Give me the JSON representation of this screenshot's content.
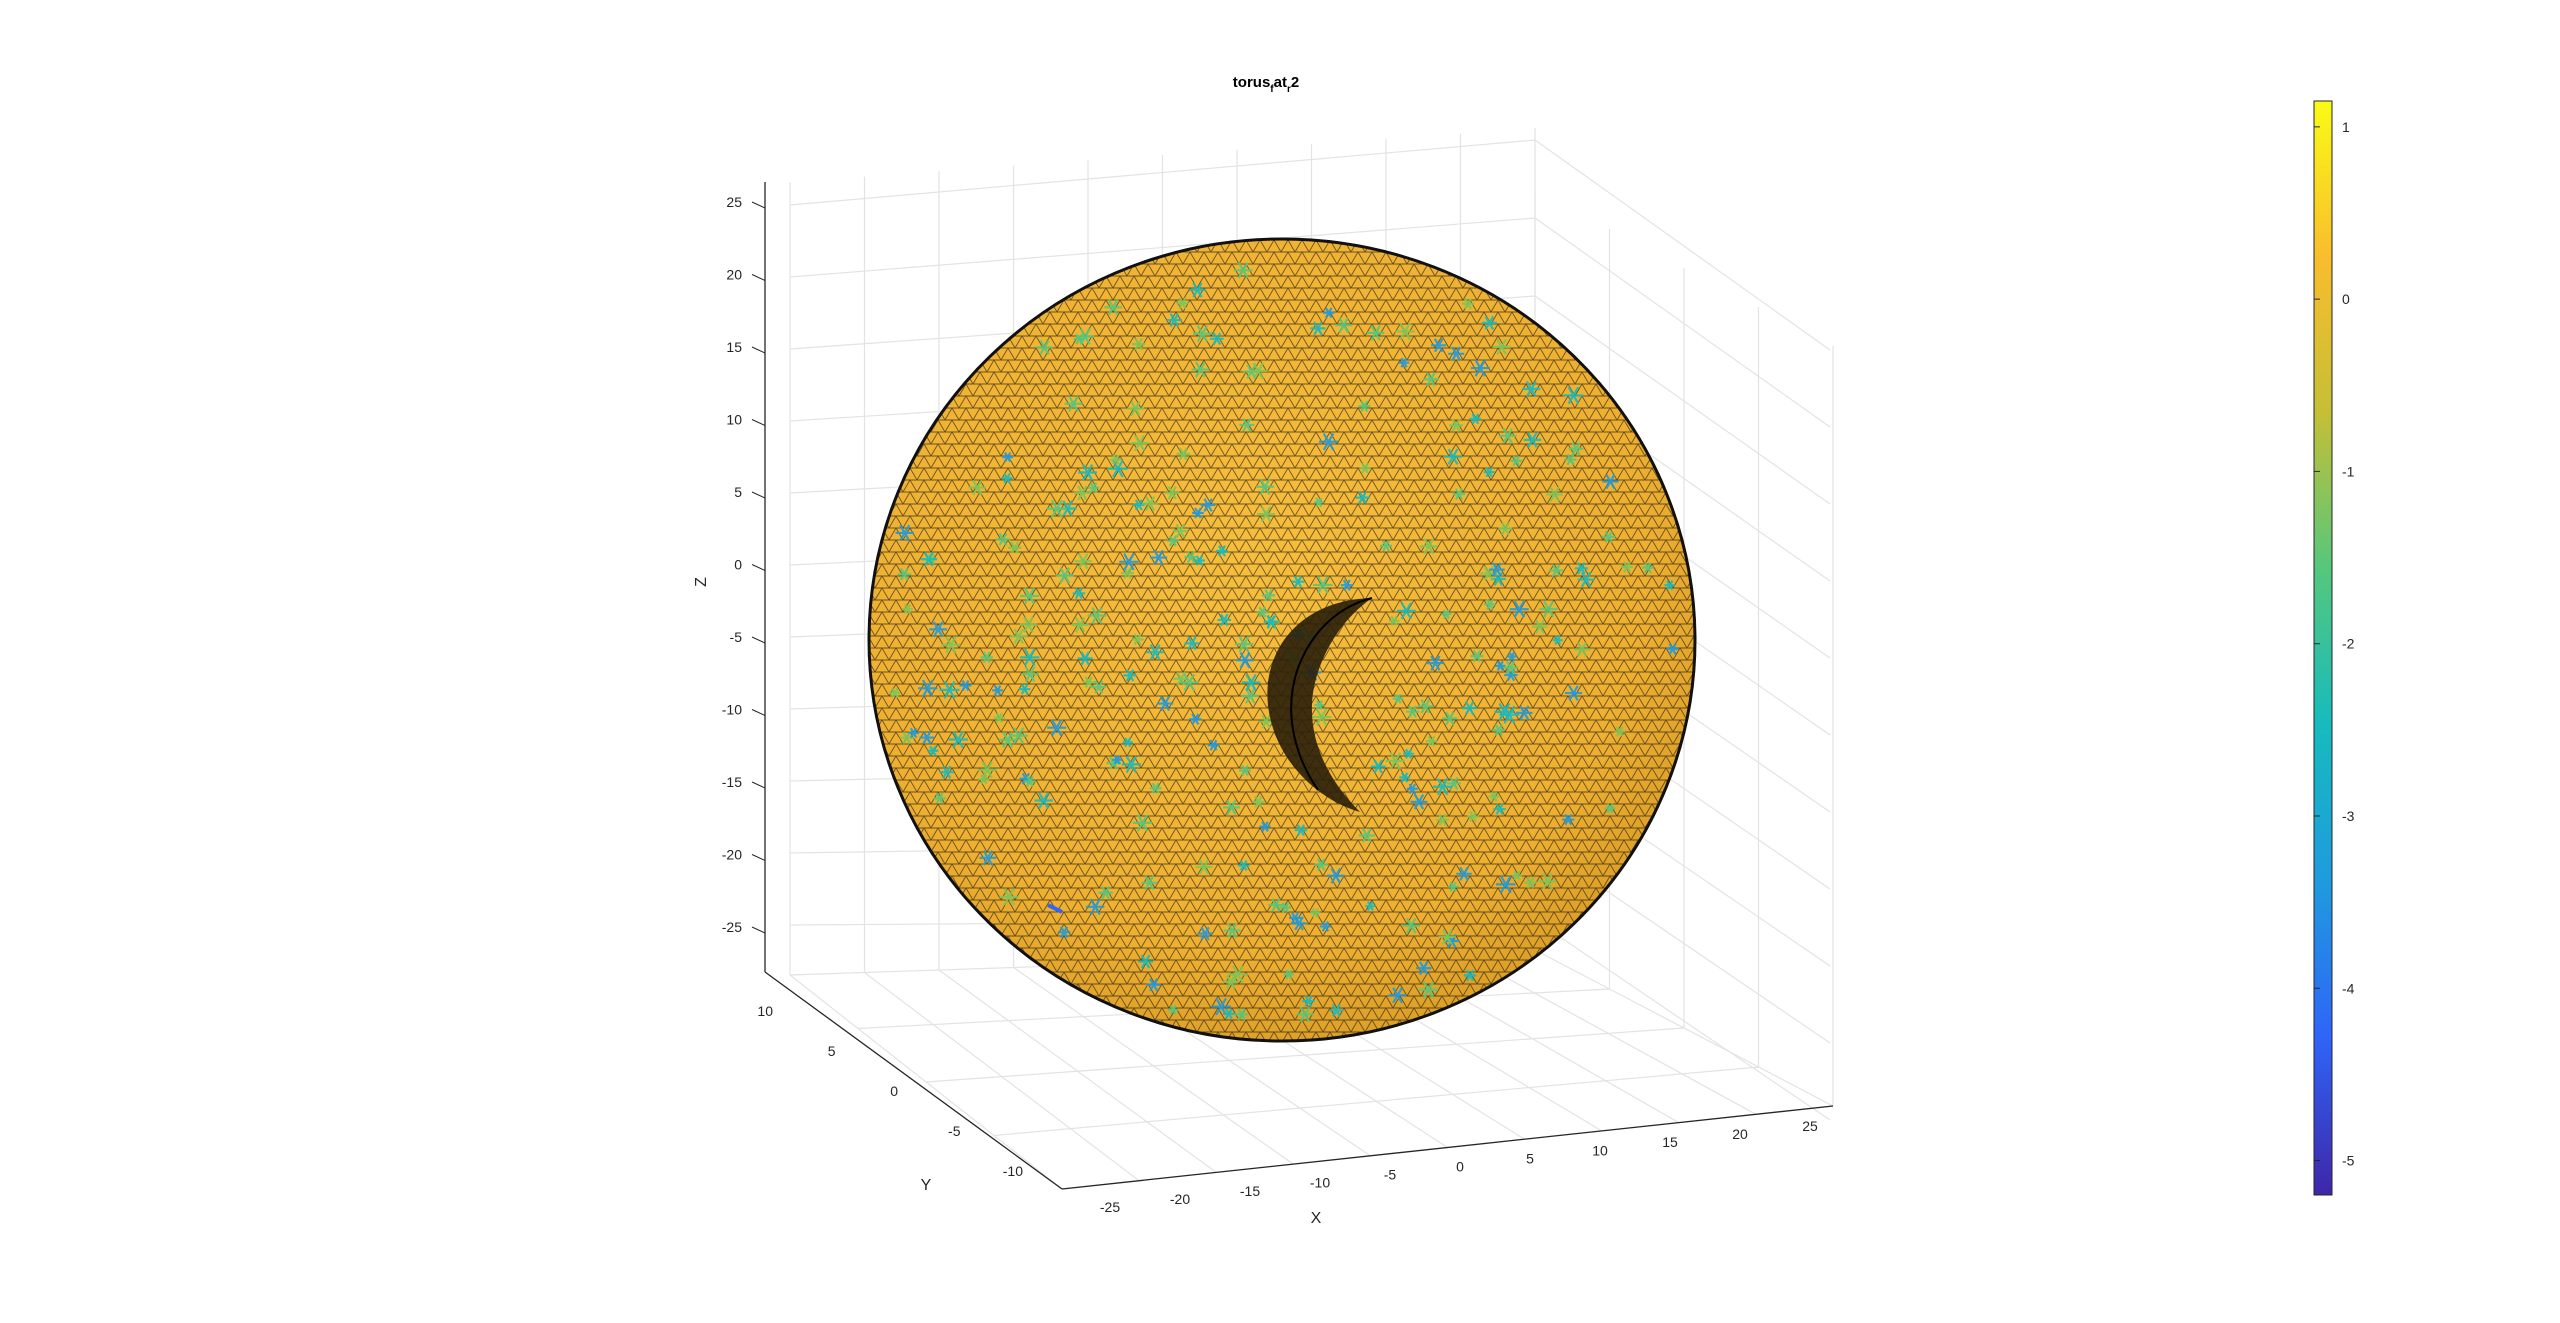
{
  "chart_data": {
    "type": "surface",
    "title_parts": [
      "torus",
      "f",
      "at",
      "r",
      "2"
    ],
    "xlabel": "X",
    "ylabel": "Y",
    "zlabel": "Z",
    "xticks": [
      "-25",
      "-20",
      "-15",
      "-10",
      "-5",
      "0",
      "5",
      "10",
      "15",
      "20",
      "25"
    ],
    "yticks": [
      "-10",
      "-5",
      "0",
      "5",
      "10"
    ],
    "zticks": [
      "25",
      "20",
      "15",
      "10",
      "5",
      "0",
      "-5",
      "-10",
      "-15",
      "-20",
      "-25"
    ],
    "xlim": [
      -27,
      27
    ],
    "ylim": [
      -12,
      12
    ],
    "zlim": [
      -27,
      27
    ],
    "grid": true,
    "surface": {
      "shape": "torus",
      "major_radius": 14,
      "minor_radius": 12,
      "edge_color": "#000000",
      "face_color_base": "#f2b232",
      "markers": "scattered green/teal mesh vertices with negative values"
    },
    "colorbar": {
      "location": "right",
      "range": [
        -5.2,
        1.15
      ],
      "ticks": [
        "1",
        "0",
        "-1",
        "-2",
        "-3",
        "-4",
        "-5"
      ],
      "colormap": "parula",
      "colormap_stops": [
        "#3e26a8",
        "#2f64f8",
        "#1e9bde",
        "#16bbbe",
        "#55c77d",
        "#c5bf36",
        "#f9bd2d",
        "#f9fb15"
      ]
    }
  }
}
